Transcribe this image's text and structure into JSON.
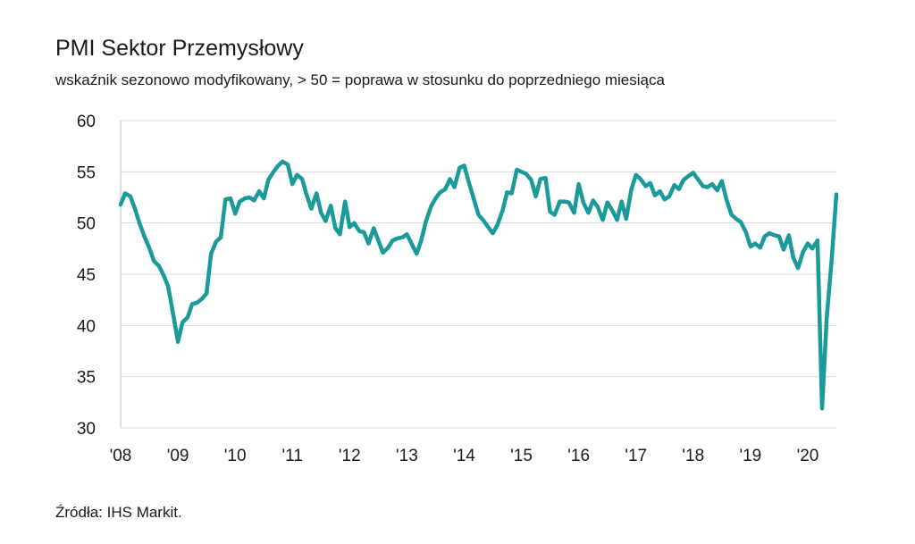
{
  "title": "PMI Sektor Przemysłowy",
  "subtitle": "wskaźnik sezonowo modyfikowany, > 50 = poprawa w stosunku do poprzedniego miesiąca",
  "source": "Źródła: IHS Markit.",
  "colors": {
    "line": "#1a9a99",
    "grid": "#d9d9d9",
    "text": "#1a1a1a"
  },
  "chart_data": {
    "type": "line",
    "title": "PMI Sektor Przemysłowy",
    "subtitle": "wskaźnik sezonowo modyfikowany, > 50 = poprawa w stosunku do poprzedniego miesiąca",
    "xlabel": "",
    "ylabel": "",
    "ylim": [
      30,
      60
    ],
    "yticks": [
      30,
      35,
      40,
      45,
      50,
      55,
      60
    ],
    "xlim": [
      2008.0,
      2020.5
    ],
    "xticks": [
      {
        "label": "'08",
        "x": 2008
      },
      {
        "label": "'09",
        "x": 2009
      },
      {
        "label": "'10",
        "x": 2010
      },
      {
        "label": "'11",
        "x": 2011
      },
      {
        "label": "'12",
        "x": 2012
      },
      {
        "label": "'13",
        "x": 2013
      },
      {
        "label": "'14",
        "x": 2014
      },
      {
        "label": "'15",
        "x": 2015
      },
      {
        "label": "'16",
        "x": 2016
      },
      {
        "label": "'17",
        "x": 2017
      },
      {
        "label": "'18",
        "x": 2018
      },
      {
        "label": "'19",
        "x": 2019
      },
      {
        "label": "'20",
        "x": 2020
      }
    ],
    "grid": true,
    "series": [
      {
        "name": "PMI",
        "x": [
          2008.0,
          2008.08,
          2008.17,
          2008.25,
          2008.33,
          2008.42,
          2008.5,
          2008.58,
          2008.67,
          2008.75,
          2008.83,
          2008.92,
          2009.0,
          2009.08,
          2009.17,
          2009.25,
          2009.33,
          2009.42,
          2009.5,
          2009.58,
          2009.67,
          2009.75,
          2009.83,
          2009.92,
          2010.0,
          2010.08,
          2010.17,
          2010.25,
          2010.33,
          2010.42,
          2010.5,
          2010.58,
          2010.67,
          2010.75,
          2010.83,
          2010.92,
          2011.0,
          2011.08,
          2011.17,
          2011.25,
          2011.33,
          2011.42,
          2011.5,
          2011.58,
          2011.67,
          2011.75,
          2011.83,
          2011.92,
          2012.0,
          2012.08,
          2012.17,
          2012.25,
          2012.33,
          2012.42,
          2012.5,
          2012.58,
          2012.67,
          2012.75,
          2012.83,
          2012.92,
          2013.0,
          2013.08,
          2013.17,
          2013.25,
          2013.33,
          2013.42,
          2013.5,
          2013.58,
          2013.67,
          2013.75,
          2013.83,
          2013.92,
          2014.0,
          2014.08,
          2014.17,
          2014.25,
          2014.33,
          2014.42,
          2014.5,
          2014.58,
          2014.67,
          2014.75,
          2014.83,
          2014.92,
          2015.0,
          2015.08,
          2015.17,
          2015.25,
          2015.33,
          2015.42,
          2015.5,
          2015.58,
          2015.67,
          2015.75,
          2015.83,
          2015.92,
          2016.0,
          2016.08,
          2016.17,
          2016.25,
          2016.33,
          2016.42,
          2016.5,
          2016.58,
          2016.67,
          2016.75,
          2016.83,
          2016.92,
          2017.0,
          2017.08,
          2017.17,
          2017.25,
          2017.33,
          2017.42,
          2017.5,
          2017.58,
          2017.67,
          2017.75,
          2017.83,
          2017.92,
          2018.0,
          2018.08,
          2018.17,
          2018.25,
          2018.33,
          2018.42,
          2018.5,
          2018.58,
          2018.67,
          2018.75,
          2018.83,
          2018.92,
          2019.0,
          2019.08,
          2019.17,
          2019.25,
          2019.33,
          2019.42,
          2019.5,
          2019.58,
          2019.67,
          2019.75,
          2019.83,
          2019.92,
          2020.0,
          2020.08,
          2020.17,
          2020.25,
          2020.33,
          2020.42,
          2020.5
        ],
        "values": [
          51.8,
          52.9,
          52.6,
          51.4,
          50.0,
          48.6,
          47.6,
          46.3,
          45.8,
          44.9,
          43.8,
          41.0,
          38.4,
          40.3,
          40.8,
          42.1,
          42.2,
          42.6,
          43.1,
          47.0,
          48.2,
          48.6,
          52.3,
          52.4,
          50.9,
          52.1,
          52.4,
          52.5,
          52.2,
          53.1,
          52.4,
          54.2,
          55.0,
          55.6,
          56.0,
          55.7,
          53.8,
          54.7,
          54.3,
          52.7,
          51.4,
          52.9,
          51.0,
          50.2,
          51.7,
          49.5,
          48.9,
          52.1,
          49.6,
          50.0,
          49.2,
          49.1,
          48.0,
          49.5,
          48.3,
          47.1,
          47.6,
          48.3,
          48.5,
          48.6,
          48.9,
          48.0,
          47.0,
          48.3,
          50.1,
          51.6,
          52.4,
          53.0,
          53.3,
          54.3,
          53.5,
          55.4,
          55.6,
          54.0,
          52.3,
          50.8,
          50.3,
          49.6,
          49.0,
          49.8,
          51.2,
          53.0,
          52.9,
          55.2,
          55.0,
          54.8,
          54.2,
          52.6,
          54.3,
          54.4,
          51.1,
          50.8,
          52.1,
          52.1,
          52.0,
          51.0,
          53.8,
          52.0,
          51.0,
          52.2,
          51.6,
          50.3,
          52.0,
          51.3,
          50.3,
          52.1,
          50.4,
          53.3,
          54.7,
          54.3,
          53.6,
          53.9,
          52.7,
          53.1,
          52.3,
          52.6,
          53.7,
          53.3,
          54.2,
          54.6,
          54.9,
          54.3,
          53.6,
          53.5,
          53.8,
          53.2,
          54.1,
          52.3,
          50.8,
          50.4,
          50.1,
          49.1,
          47.7,
          48.0,
          47.6,
          48.7,
          49.0,
          48.8,
          48.7,
          47.4,
          48.8,
          46.6,
          45.6,
          47.2,
          48.0,
          47.5,
          48.3,
          31.9,
          40.6,
          46.6,
          52.8
        ]
      }
    ]
  }
}
